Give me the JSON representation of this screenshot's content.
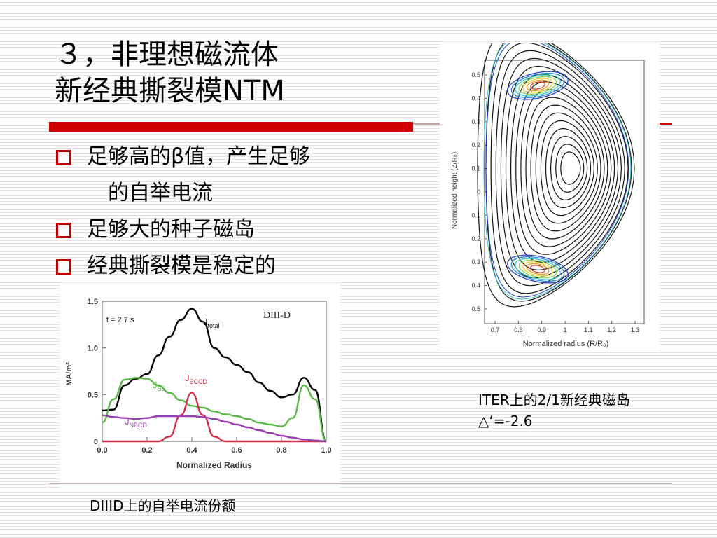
{
  "slide": {
    "title_line1": "３，非理想磁流体",
    "title_line2": "新经典撕裂模NTM",
    "accent_color": "#d10000"
  },
  "bullets": [
    {
      "text": "足够高的β值，产生足够",
      "continuation": "的自举电流"
    },
    {
      "text": "足够大的种子磁岛",
      "continuation": ""
    },
    {
      "text": "经典撕裂模是稳定的",
      "continuation": ""
    }
  ],
  "figure_left": {
    "caption": "DIIID上的自举电流份额",
    "time_label": "t = 2.7 s",
    "device_label": "DIII-D",
    "ylabel": "MA/m²",
    "xlabel": "Normalized Radius",
    "y_ticks": [
      "0",
      "0.5",
      "1.0",
      "1.5"
    ],
    "x_ticks": [
      "0.0",
      "0.2",
      "0.4",
      "0.6",
      "0.8",
      "1.0"
    ],
    "curve_labels": {
      "total": "J",
      "total_sub": "total",
      "bs": "J",
      "bs_sub": "BS",
      "eccd": "J",
      "eccd_sub": "ECCD",
      "nbcd": "J",
      "nbcd_sub": "NBCD"
    }
  },
  "figure_right": {
    "caption_line1": "ITER上的2/1新经典磁岛",
    "caption_line2": "△‘=-2.6",
    "ylabel": "Normalized height (Z/R₀)",
    "xlabel": "Normalized radius (R/R₀)",
    "y_ticks": [
      "0.5",
      "0.4",
      "0.3",
      "0.2",
      "0.1",
      "0",
      "0.1",
      "0.2",
      "0.3",
      "0.4",
      "0.5"
    ],
    "x_ticks": [
      "0.7",
      "0.8",
      "0.9",
      "1",
      "1.1",
      "1.2",
      "1.3"
    ]
  },
  "chart_data": {
    "type": "line",
    "title": "",
    "xlabel": "Normalized Radius",
    "ylabel": "MA/m²",
    "xlim": [
      0,
      1.0
    ],
    "ylim": [
      0,
      1.5
    ],
    "x": [
      0.0,
      0.05,
      0.1,
      0.15,
      0.2,
      0.25,
      0.3,
      0.35,
      0.4,
      0.45,
      0.5,
      0.55,
      0.6,
      0.65,
      0.7,
      0.75,
      0.8,
      0.85,
      0.9,
      0.95,
      1.0
    ],
    "series": [
      {
        "name": "Jtotal",
        "color": "#000000",
        "values": [
          0.33,
          0.34,
          0.6,
          0.67,
          0.72,
          0.92,
          1.12,
          1.3,
          1.42,
          1.28,
          1.0,
          0.9,
          0.82,
          0.74,
          0.63,
          0.54,
          0.47,
          0.5,
          0.68,
          0.55,
          0.0
        ]
      },
      {
        "name": "JBS",
        "color": "#5bb84a",
        "values": [
          0.2,
          0.45,
          0.66,
          0.68,
          0.67,
          0.6,
          0.52,
          0.44,
          0.38,
          0.36,
          0.32,
          0.29,
          0.27,
          0.24,
          0.2,
          0.18,
          0.16,
          0.25,
          0.6,
          0.45,
          0.0
        ]
      },
      {
        "name": "JECCD",
        "color": "#d0304a",
        "values": [
          0.0,
          0.0,
          0.0,
          0.0,
          0.0,
          0.0,
          0.05,
          0.28,
          0.52,
          0.28,
          0.05,
          0.0,
          0.0,
          0.0,
          0.0,
          0.0,
          0.0,
          0.0,
          0.0,
          0.0,
          0.0
        ]
      },
      {
        "name": "JNBCD",
        "color": "#9a3fb0",
        "values": [
          0.28,
          0.26,
          0.25,
          0.24,
          0.25,
          0.27,
          0.27,
          0.27,
          0.27,
          0.26,
          0.24,
          0.21,
          0.18,
          0.15,
          0.12,
          0.09,
          0.06,
          0.04,
          0.02,
          0.01,
          0.0
        ]
      }
    ]
  }
}
